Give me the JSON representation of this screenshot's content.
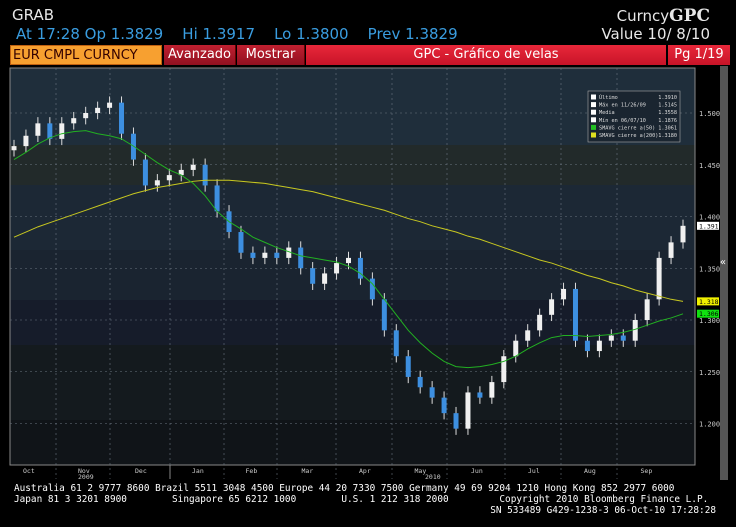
{
  "header": {
    "title": "GRAB",
    "quote": "At 17:28 Op 1.3829    Hi 1.3917    Lo 1.3800    Prev 1.3829",
    "function_prefix": "Curncy",
    "function_code": "GPC",
    "value_date": "Value 10/ 8/10"
  },
  "toolbar": {
    "ticker": "EUR CMPL CURNCY",
    "advanced_label": "Avanzado",
    "show_label": "Mostrar",
    "screen_title": "GPC - Gráfico de velas",
    "page": "Pg 1/19"
  },
  "colors": {
    "up": "#f0f0f0",
    "down": "#3d8fe0",
    "sma50": "#22b022",
    "sma200": "#c8c820",
    "accent": "#e8283a"
  },
  "chart_data": {
    "type": "candlestick",
    "title": "GPC - Gráfico de velas",
    "ylim": [
      1.18,
      1.53
    ],
    "yticks": [
      "1.5000",
      "1.4500",
      "1.4000",
      "1.3500",
      "1.3000",
      "1.2500",
      "1.2000"
    ],
    "ytick_values": [
      1.5,
      1.45,
      1.4,
      1.35,
      1.3,
      1.25,
      1.2
    ],
    "month_labels": [
      "Oct",
      "Nov",
      "Dec",
      "Jan",
      "Feb",
      "Mar",
      "Apr",
      "May",
      "Jun",
      "Jul",
      "Aug",
      "Sep"
    ],
    "year_labels": [
      "2009",
      "2010"
    ],
    "closes": [
      1.468,
      1.478,
      1.49,
      1.475,
      1.49,
      1.495,
      1.5,
      1.505,
      1.51,
      1.48,
      1.455,
      1.43,
      1.435,
      1.44,
      1.445,
      1.45,
      1.43,
      1.405,
      1.385,
      1.365,
      1.36,
      1.365,
      1.36,
      1.37,
      1.35,
      1.335,
      1.345,
      1.355,
      1.36,
      1.34,
      1.32,
      1.29,
      1.265,
      1.245,
      1.235,
      1.225,
      1.21,
      1.195,
      1.23,
      1.225,
      1.24,
      1.265,
      1.28,
      1.29,
      1.305,
      1.32,
      1.33,
      1.28,
      1.27,
      1.28,
      1.285,
      1.28,
      1.3,
      1.32,
      1.36,
      1.375,
      1.391
    ],
    "sma50": [
      1.455,
      1.462,
      1.47,
      1.476,
      1.48,
      1.482,
      1.483,
      1.48,
      1.478,
      1.475,
      1.468,
      1.46,
      1.452,
      1.445,
      1.44,
      1.432,
      1.42,
      1.405,
      1.395,
      1.388,
      1.38,
      1.375,
      1.37,
      1.366,
      1.362,
      1.36,
      1.358,
      1.356,
      1.352,
      1.345,
      1.335,
      1.32,
      1.305,
      1.29,
      1.278,
      1.268,
      1.26,
      1.255,
      1.254,
      1.255,
      1.257,
      1.26,
      1.265,
      1.272,
      1.278,
      1.283,
      1.285,
      1.285,
      1.284,
      1.285,
      1.286,
      1.288,
      1.291,
      1.295,
      1.299,
      1.302,
      1.306
    ],
    "sma200": [
      1.38,
      1.385,
      1.39,
      1.394,
      1.398,
      1.402,
      1.406,
      1.41,
      1.414,
      1.418,
      1.422,
      1.425,
      1.428,
      1.43,
      1.432,
      1.434,
      1.435,
      1.435,
      1.435,
      1.434,
      1.433,
      1.432,
      1.43,
      1.428,
      1.426,
      1.424,
      1.421,
      1.418,
      1.415,
      1.412,
      1.409,
      1.406,
      1.402,
      1.398,
      1.395,
      1.391,
      1.388,
      1.385,
      1.381,
      1.378,
      1.374,
      1.37,
      1.366,
      1.362,
      1.358,
      1.355,
      1.351,
      1.347,
      1.343,
      1.34,
      1.336,
      1.333,
      1.329,
      1.326,
      1.323,
      1.32,
      1.318
    ],
    "legend": [
      {
        "label": "Último",
        "value": "1.3910",
        "color": "#ffffff"
      },
      {
        "label": "Máx en 11/26/09",
        "value": "1.5145",
        "color": "#ffffff"
      },
      {
        "label": "Media",
        "value": "1.3558",
        "color": "#ffffff"
      },
      {
        "label": "Mín en 06/07/10",
        "value": "1.1876",
        "color": "#ffffff"
      },
      {
        "label": "SMAVG cierre a(50)",
        "value": "1.3061",
        "color": "#22c022"
      },
      {
        "label": "SMAVG cierre a(200)",
        "value": "1.3180",
        "color": "#e0e020"
      }
    ],
    "last_tags": [
      {
        "value": "1.3910",
        "numeric": 1.391,
        "color": "#ffffff"
      },
      {
        "value": "1.3180",
        "numeric": 1.318,
        "color": "#f0f000"
      },
      {
        "value": "1.3061",
        "numeric": 1.3061,
        "color": "#10e010"
      }
    ],
    "legend_placement": "top-right"
  },
  "footer": {
    "line1": "Australia 61 2 9777 8600 Brazil 5511 3048 4500 Europe 44 20 7330 7500 Germany 49 69 9204 1210 Hong Kong 852 2977 6000",
    "line2": "Japan 81 3 3201 8900        Singapore 65 6212 1000        U.S. 1 212 318 2000         Copyright 2010 Bloomberg Finance L.P.",
    "line3": "SN 533489 G429-1238-3 06-Oct-10 17:28:28"
  }
}
